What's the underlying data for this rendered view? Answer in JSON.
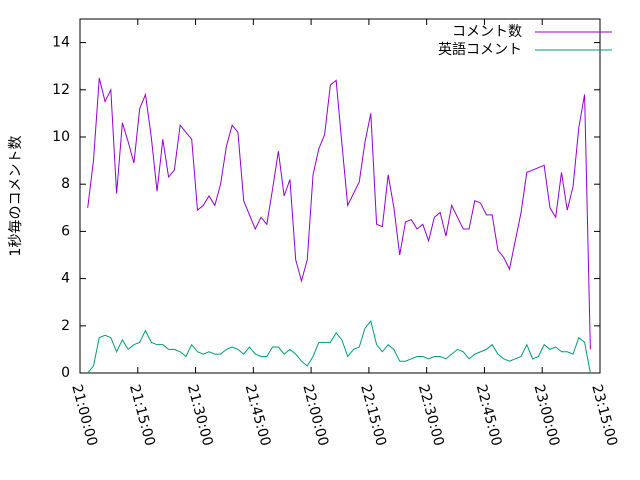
{
  "chart_data": {
    "type": "line",
    "ylabel": "1秒毎のコメント数",
    "x": [
      "21:02:00",
      "21:03:30",
      "21:05:00",
      "21:06:30",
      "21:08:00",
      "21:09:30",
      "21:11:00",
      "21:12:30",
      "21:14:00",
      "21:15:30",
      "21:17:00",
      "21:18:30",
      "21:20:00",
      "21:21:30",
      "21:23:00",
      "21:24:30",
      "21:26:00",
      "21:27:30",
      "21:29:00",
      "21:30:30",
      "21:32:00",
      "21:33:30",
      "21:35:00",
      "21:36:30",
      "21:38:00",
      "21:39:30",
      "21:41:00",
      "21:42:30",
      "21:44:00",
      "21:45:30",
      "21:47:00",
      "21:48:30",
      "21:50:00",
      "21:51:30",
      "21:53:00",
      "21:54:30",
      "21:56:00",
      "21:57:30",
      "21:59:00",
      "22:00:30",
      "22:02:00",
      "22:03:30",
      "22:05:00",
      "22:06:30",
      "22:08:00",
      "22:09:30",
      "22:11:00",
      "22:12:30",
      "22:14:00",
      "22:15:30",
      "22:17:00",
      "22:18:30",
      "22:20:00",
      "22:21:30",
      "22:23:00",
      "22:24:30",
      "22:26:00",
      "22:27:30",
      "22:29:00",
      "22:30:30",
      "22:32:00",
      "22:33:30",
      "22:35:00",
      "22:36:30",
      "22:38:00",
      "22:39:30",
      "22:41:00",
      "22:42:30",
      "22:44:00",
      "22:45:30",
      "22:47:00",
      "22:48:30",
      "22:50:00",
      "22:51:30",
      "22:53:00",
      "22:54:30",
      "22:56:00",
      "22:57:30",
      "22:59:00",
      "23:00:30",
      "23:02:00",
      "23:03:30",
      "23:05:00",
      "23:06:30",
      "23:08:00",
      "23:09:30",
      "23:11:00",
      "23:12:30"
    ],
    "series": [
      {
        "name": "コメント数",
        "color": "#9400d3",
        "values": [
          7.0,
          9.0,
          12.5,
          11.5,
          12.0,
          7.6,
          10.6,
          9.8,
          8.9,
          11.2,
          11.8,
          10.0,
          7.7,
          9.9,
          8.3,
          8.6,
          10.5,
          10.2,
          9.9,
          6.9,
          7.1,
          7.5,
          7.1,
          8.0,
          9.6,
          10.5,
          10.2,
          7.3,
          6.7,
          6.1,
          6.6,
          6.3,
          7.8,
          9.4,
          7.5,
          8.2,
          4.8,
          3.9,
          4.8,
          8.4,
          9.5,
          10.1,
          12.2,
          12.4,
          9.7,
          7.1,
          7.6,
          8.1,
          9.8,
          11.0,
          6.3,
          6.2,
          8.4,
          7.0,
          5.0,
          6.4,
          6.5,
          6.1,
          6.3,
          5.6,
          6.6,
          6.8,
          5.8,
          7.1,
          6.6,
          6.1,
          6.1,
          7.3,
          7.2,
          6.7,
          6.7,
          5.2,
          4.9,
          4.4,
          5.6,
          6.8,
          8.5,
          8.6,
          8.7,
          8.8,
          7.0,
          6.6,
          8.5,
          6.9,
          7.9,
          10.4,
          11.8,
          1.0
        ]
      },
      {
        "name": "英語コメント",
        "color": "#009e73",
        "values": [
          0,
          0.3,
          1.5,
          1.6,
          1.5,
          0.9,
          1.4,
          1.0,
          1.2,
          1.3,
          1.8,
          1.3,
          1.2,
          1.2,
          1.0,
          1.0,
          0.9,
          0.7,
          1.2,
          0.9,
          0.8,
          0.9,
          0.8,
          0.8,
          1.0,
          1.1,
          1.0,
          0.8,
          1.1,
          0.8,
          0.7,
          0.7,
          1.1,
          1.1,
          0.8,
          1.0,
          0.8,
          0.5,
          0.3,
          0.7,
          1.3,
          1.3,
          1.3,
          1.7,
          1.4,
          0.7,
          1.0,
          1.1,
          1.9,
          2.2,
          1.2,
          0.9,
          1.2,
          1.0,
          0.5,
          0.5,
          0.6,
          0.7,
          0.7,
          0.6,
          0.7,
          0.7,
          0.6,
          0.8,
          1.0,
          0.9,
          0.6,
          0.8,
          0.9,
          1.0,
          1.2,
          0.8,
          0.6,
          0.5,
          0.6,
          0.7,
          1.2,
          0.6,
          0.7,
          1.2,
          1.0,
          1.1,
          0.9,
          0.9,
          0.8,
          1.5,
          1.3,
          0
        ]
      }
    ],
    "xlim": [
      "21:00:00",
      "23:15:00"
    ],
    "xticks": [
      "21:00:00",
      "21:15:00",
      "21:30:00",
      "21:45:00",
      "22:00:00",
      "22:15:00",
      "22:30:00",
      "22:45:00",
      "23:00:00",
      "23:15:00"
    ],
    "ylim": [
      0,
      15
    ],
    "yticks": [
      0,
      2,
      4,
      6,
      8,
      10,
      12,
      14
    ],
    "legend": "top-right",
    "grid": false
  }
}
